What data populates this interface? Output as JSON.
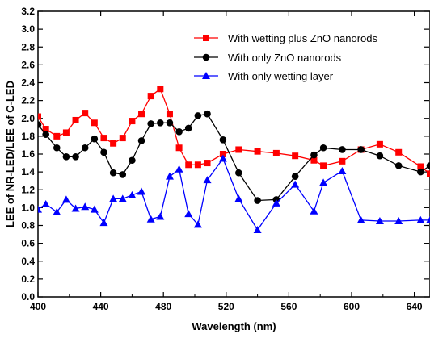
{
  "chart_data": {
    "type": "line",
    "xlabel": "Wavelength (nm)",
    "ylabel": "LEE of NR-LED/LEE of C-LED",
    "xlim": [
      400,
      650
    ],
    "ylim": [
      0.0,
      3.2
    ],
    "x_ticks": [
      400,
      440,
      480,
      520,
      560,
      600,
      640
    ],
    "x_tick_labels": [
      "400",
      "440",
      "480",
      "520",
      "560",
      "600",
      "640"
    ],
    "y_ticks": [
      0.0,
      0.2,
      0.4,
      0.6,
      0.8,
      1.0,
      1.2,
      1.4,
      1.6,
      1.8,
      2.0,
      2.2,
      2.4,
      2.6,
      2.8,
      3.0,
      3.2
    ],
    "y_tick_labels": [
      "0.0",
      "0.2",
      "0.4",
      "0.6",
      "0.8",
      "1.0",
      "1.2",
      "1.4",
      "1.6",
      "1.8",
      "2.0",
      "2.2",
      "2.4",
      "2.6",
      "2.8",
      "3.0",
      "3.2"
    ],
    "grid": false,
    "legend_position": "top-right",
    "series": [
      {
        "name": "With wetting plus ZnO nanorods",
        "color": "#ff0000",
        "marker": "square",
        "x": [
          400,
          405,
          412,
          418,
          424,
          430,
          436,
          442,
          448,
          454,
          460,
          466,
          472,
          478,
          484,
          490,
          496,
          502,
          508,
          518,
          528,
          540,
          552,
          564,
          576,
          582,
          594,
          606,
          618,
          630,
          644,
          650
        ],
        "y": [
          2.02,
          1.88,
          1.8,
          1.84,
          1.98,
          2.06,
          1.95,
          1.78,
          1.72,
          1.78,
          1.97,
          2.05,
          2.25,
          2.33,
          2.05,
          1.67,
          1.48,
          1.48,
          1.5,
          1.6,
          1.65,
          1.63,
          1.61,
          1.58,
          1.53,
          1.47,
          1.52,
          1.65,
          1.71,
          1.62,
          1.46,
          1.38
        ]
      },
      {
        "name": "With only ZnO nanorods",
        "color": "#000000",
        "marker": "circle",
        "x": [
          400,
          405,
          412,
          418,
          424,
          430,
          436,
          442,
          448,
          454,
          460,
          466,
          472,
          478,
          484,
          490,
          496,
          502,
          508,
          518,
          528,
          540,
          552,
          564,
          576,
          582,
          594,
          606,
          618,
          630,
          644,
          650
        ],
        "y": [
          1.93,
          1.82,
          1.67,
          1.57,
          1.57,
          1.67,
          1.77,
          1.62,
          1.39,
          1.37,
          1.53,
          1.75,
          1.94,
          1.95,
          1.95,
          1.85,
          1.89,
          2.03,
          2.05,
          1.76,
          1.39,
          1.08,
          1.09,
          1.35,
          1.59,
          1.67,
          1.65,
          1.65,
          1.58,
          1.47,
          1.4,
          1.47
        ]
      },
      {
        "name": "With only wetting layer",
        "color": "#0000ff",
        "marker": "triangle",
        "x": [
          400,
          405,
          412,
          418,
          424,
          430,
          436,
          442,
          448,
          454,
          460,
          466,
          472,
          478,
          484,
          490,
          496,
          502,
          508,
          518,
          528,
          540,
          552,
          564,
          576,
          582,
          594,
          606,
          618,
          630,
          644,
          650
        ],
        "y": [
          0.98,
          1.04,
          0.95,
          1.09,
          0.99,
          1.01,
          0.98,
          0.83,
          1.1,
          1.1,
          1.14,
          1.18,
          0.87,
          0.9,
          1.35,
          1.43,
          0.93,
          0.81,
          1.31,
          1.55,
          1.1,
          0.75,
          1.05,
          1.26,
          0.96,
          1.28,
          1.41,
          0.86,
          0.85,
          0.85,
          0.86,
          0.86
        ]
      }
    ]
  }
}
